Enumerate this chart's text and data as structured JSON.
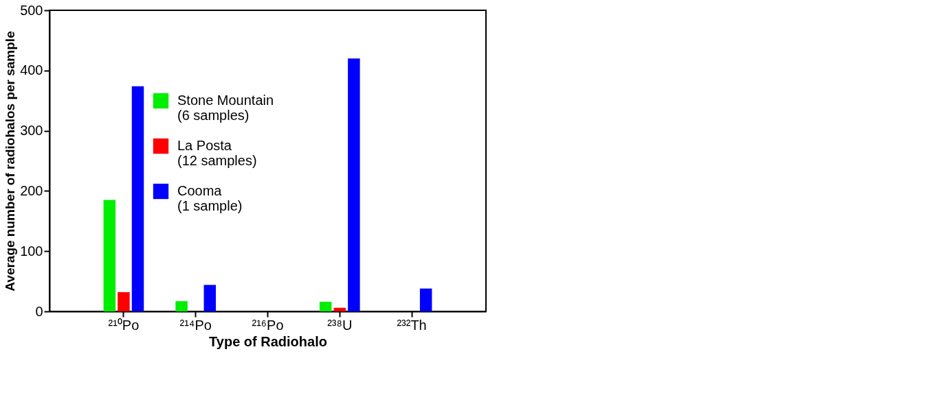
{
  "chart_data": {
    "type": "bar",
    "xlabel": "Type of Radiohalo",
    "ylabel": "Average number of radiohalos per sample",
    "categories": [
      "²¹⁰Po",
      "²¹⁴Po",
      "²¹⁶Po",
      "²³⁸U",
      "²³²Th"
    ],
    "series": [
      {
        "name": "Stone Mountain\n(6 samples)",
        "color": "#00ee00",
        "values": [
          185,
          17,
          null,
          16,
          null
        ]
      },
      {
        "name": "La Posta\n(12 samples)",
        "color": "#ff0000",
        "values": [
          32,
          null,
          null,
          6,
          null
        ]
      },
      {
        "name": "Cooma\n(1 sample)",
        "color": "#0000ff",
        "values": [
          374,
          44,
          null,
          420,
          38
        ]
      }
    ],
    "ylim": [
      0,
      500
    ],
    "yticks": [
      0,
      100,
      200,
      300,
      400,
      500
    ],
    "grid": false,
    "legend": "top left"
  }
}
